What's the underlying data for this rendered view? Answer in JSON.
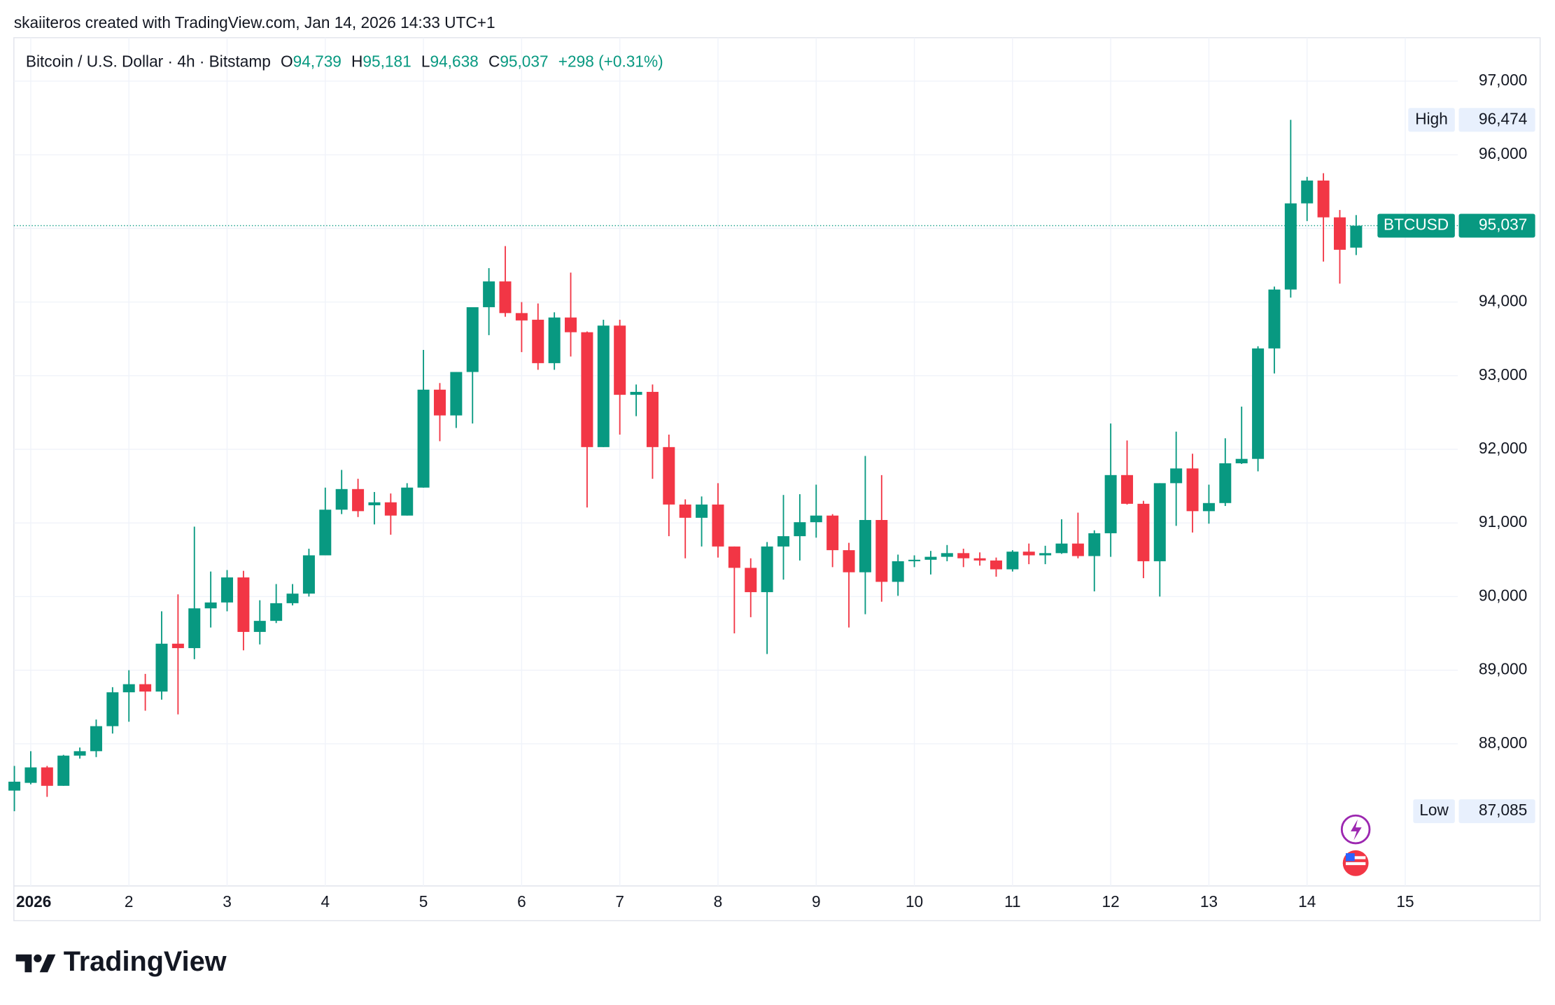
{
  "header": {
    "credit": "skaiiteros created with TradingView.com, Jan 14, 2026 14:33 UTC+1",
    "symbol": "Bitcoin / U.S. Dollar · 4h · Bitstamp",
    "ohlc": [
      {
        "key": "O",
        "value": "94,739"
      },
      {
        "key": "H",
        "value": "95,181"
      },
      {
        "key": "L",
        "value": "94,638"
      },
      {
        "key": "C",
        "value": "95,037"
      }
    ],
    "change": "+298 (+0.31%)"
  },
  "chart_data": {
    "type": "candlestick",
    "up_color": "#089981",
    "down_color": "#f23645",
    "grid": true,
    "ylim": [
      86070,
      97590
    ],
    "yticks": [
      {
        "value": 88000,
        "label": "88,000"
      },
      {
        "value": 89000,
        "label": "89,000"
      },
      {
        "value": 90000,
        "label": "90,000"
      },
      {
        "value": 91000,
        "label": "91,000"
      },
      {
        "value": 92000,
        "label": "92,000"
      },
      {
        "value": 93000,
        "label": "93,000"
      },
      {
        "value": 94000,
        "label": "94,000"
      },
      {
        "value": 95000,
        "label": "95,000"
      },
      {
        "value": 96000,
        "label": "96,000"
      },
      {
        "value": 97000,
        "label": "97,000"
      }
    ],
    "xticks": [
      "2026",
      "2",
      "3",
      "4",
      "5",
      "6",
      "7",
      "8",
      "9",
      "10",
      "11",
      "12",
      "13",
      "14",
      "15"
    ],
    "open": [
      87365,
      87470,
      87680,
      87430,
      87840,
      87900,
      88240,
      88700,
      88810,
      88710,
      89360,
      89300,
      89840,
      89920,
      90260,
      89520,
      89670,
      89910,
      90040,
      90560,
      91180,
      91460,
      91240,
      91280,
      91100,
      91480,
      92810,
      92460,
      93050,
      93930,
      94280,
      93850,
      93760,
      93170,
      93790,
      93590,
      92030,
      93680,
      92740,
      92780,
      92030,
      91250,
      91070,
      91250,
      90680,
      90390,
      90060,
      90680,
      90820,
      91010,
      91100,
      90630,
      90330,
      91040,
      90200,
      90480,
      90500,
      90540,
      90590,
      90520,
      90490,
      90370,
      90610,
      90560,
      90590,
      90720,
      90550,
      90860,
      91650,
      91260,
      90480,
      91540,
      91740,
      91160,
      91270,
      91810,
      91870,
      93370,
      94170,
      95340,
      95650,
      95150,
      94739
    ],
    "high": [
      87700,
      87900,
      87700,
      87850,
      87950,
      88330,
      88770,
      89000,
      88950,
      89800,
      90030,
      90950,
      90340,
      90360,
      90350,
      89950,
      90170,
      90170,
      90650,
      91480,
      91720,
      91600,
      91420,
      91400,
      91540,
      93350,
      92900,
      93050,
      93930,
      94460,
      94760,
      94000,
      93980,
      93860,
      94400,
      93600,
      93760,
      93760,
      92880,
      92880,
      92200,
      91320,
      91360,
      91540,
      90680,
      90520,
      90740,
      91380,
      91390,
      91520,
      91120,
      90730,
      91910,
      91650,
      90570,
      90560,
      90620,
      90700,
      90650,
      90600,
      90530,
      90630,
      90720,
      90690,
      91050,
      91140,
      90900,
      92350,
      92120,
      91300,
      91540,
      92240,
      91940,
      91520,
      92150,
      92580,
      93400,
      94210,
      96474,
      95700,
      95750,
      95250,
      95181
    ],
    "low": [
      87085,
      87450,
      87280,
      87430,
      87800,
      87820,
      88140,
      88300,
      88450,
      88600,
      88400,
      89150,
      89580,
      89800,
      89270,
      89350,
      89640,
      89880,
      90000,
      90560,
      91120,
      91080,
      90980,
      90840,
      91100,
      91480,
      92110,
      92290,
      92350,
      93550,
      93800,
      93320,
      93080,
      93080,
      93260,
      91210,
      92030,
      92200,
      92450,
      91600,
      90820,
      90520,
      90680,
      90530,
      89500,
      89720,
      89220,
      90230,
      90490,
      90800,
      90400,
      89580,
      89760,
      89930,
      90010,
      90400,
      90300,
      90480,
      90400,
      90420,
      90270,
      90340,
      90440,
      90440,
      90580,
      90520,
      90070,
      90540,
      91250,
      90250,
      90000,
      90960,
      90870,
      90990,
      91230,
      91800,
      91700,
      93030,
      94060,
      95100,
      94550,
      94250,
      94638
    ],
    "close": [
      87486,
      87680,
      87430,
      87840,
      87900,
      88240,
      88700,
      88810,
      88710,
      89360,
      89300,
      89840,
      89920,
      90260,
      89520,
      89670,
      89910,
      90040,
      90560,
      91180,
      91460,
      91160,
      91280,
      91100,
      91480,
      92810,
      92460,
      93050,
      93930,
      94280,
      93850,
      93750,
      93170,
      93790,
      93590,
      92030,
      93680,
      92740,
      92780,
      92030,
      91250,
      91070,
      91250,
      90680,
      90390,
      90060,
      90680,
      90820,
      91010,
      91100,
      90630,
      90330,
      91040,
      90200,
      90480,
      90500,
      90540,
      90590,
      90520,
      90490,
      90370,
      90610,
      90560,
      90590,
      90720,
      90550,
      90860,
      91650,
      91260,
      90480,
      91540,
      91740,
      91160,
      91270,
      91810,
      91870,
      93370,
      94170,
      95340,
      95650,
      95150,
      94710,
      95037
    ],
    "markers": {
      "high": {
        "label": "High",
        "value": 96474,
        "value_label": "96,474"
      },
      "low": {
        "label": "Low",
        "value": 87085,
        "value_label": "87,085"
      },
      "last": {
        "label": "BTCUSD",
        "value": 95037,
        "value_label": "95,037"
      }
    }
  },
  "footer": {
    "logo": "TradingView"
  }
}
